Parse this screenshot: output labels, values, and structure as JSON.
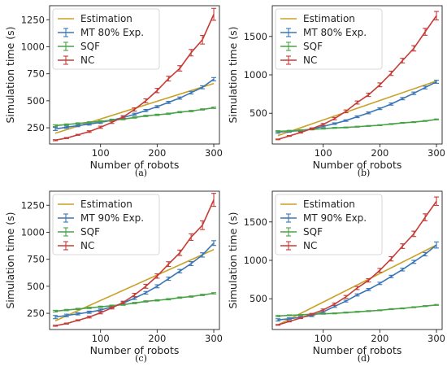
{
  "colors": {
    "estimation": "#c9a227",
    "mt": "#3a76b5",
    "sqf": "#4aa247",
    "nc": "#c63c37"
  },
  "chart_data": [
    {
      "type": "line",
      "panel_label": "(a)",
      "xlabel": "Number of robots",
      "ylabel": "Simulation time (s)",
      "xlim": [
        10,
        310
      ],
      "ylim": [
        100,
        1380
      ],
      "xticks": [
        100,
        200,
        300
      ],
      "yticks": [
        250,
        500,
        750,
        1000,
        1250
      ],
      "legend": "top-left",
      "grid": false,
      "legend_entries": [
        "Estimation",
        "MT 80% Exp.",
        "SQF",
        "NC"
      ],
      "estimation": {
        "name": "Estimation",
        "x": [
          20,
          300
        ],
        "y": [
          200,
          660
        ]
      },
      "series": [
        {
          "name": "MT 80% Exp.",
          "key": "mt",
          "x": [
            20,
            40,
            60,
            80,
            100,
            120,
            140,
            160,
            180,
            200,
            220,
            240,
            260,
            280,
            300
          ],
          "y": [
            240,
            255,
            270,
            285,
            300,
            320,
            345,
            375,
            410,
            445,
            485,
            525,
            575,
            625,
            700
          ],
          "err": [
            15,
            10,
            10,
            10,
            10,
            10,
            10,
            10,
            10,
            10,
            10,
            10,
            12,
            14,
            15
          ]
        },
        {
          "name": "SQF",
          "key": "sqf",
          "x": [
            20,
            40,
            60,
            80,
            100,
            120,
            140,
            160,
            180,
            200,
            220,
            240,
            260,
            280,
            300
          ],
          "y": [
            270,
            280,
            290,
            300,
            310,
            320,
            330,
            345,
            360,
            370,
            380,
            395,
            405,
            420,
            435
          ],
          "err": [
            8,
            6,
            6,
            6,
            6,
            6,
            6,
            6,
            6,
            6,
            6,
            6,
            6,
            6,
            6
          ]
        },
        {
          "name": "NC",
          "key": "nc",
          "x": [
            20,
            40,
            60,
            80,
            100,
            120,
            140,
            160,
            180,
            200,
            220,
            240,
            260,
            280,
            300
          ],
          "y": [
            135,
            155,
            185,
            215,
            255,
            300,
            350,
            420,
            500,
            595,
            705,
            800,
            945,
            1065,
            1300
          ],
          "err": [
            5,
            5,
            5,
            8,
            10,
            10,
            12,
            15,
            18,
            20,
            22,
            25,
            30,
            40,
            55
          ]
        }
      ]
    },
    {
      "type": "line",
      "panel_label": "(b)",
      "xlabel": "Number of robots",
      "ylabel": "Simulation time (s)",
      "xlim": [
        10,
        310
      ],
      "ylim": [
        100,
        1900
      ],
      "xticks": [
        100,
        200,
        300
      ],
      "yticks": [
        500,
        1000,
        1500
      ],
      "legend": "top-left",
      "grid": false,
      "legend_entries": [
        "Estimation",
        "MT 80% Exp.",
        "SQF",
        "NC"
      ],
      "estimation": {
        "name": "Estimation",
        "x": [
          20,
          300
        ],
        "y": [
          210,
          920
        ]
      },
      "series": [
        {
          "name": "MT 80% Exp.",
          "key": "mt",
          "x": [
            20,
            40,
            60,
            80,
            100,
            120,
            140,
            160,
            180,
            200,
            220,
            240,
            260,
            280,
            300
          ],
          "y": [
            255,
            265,
            275,
            295,
            330,
            365,
            405,
            455,
            505,
            560,
            620,
            690,
            760,
            835,
            910
          ],
          "err": [
            15,
            12,
            10,
            10,
            10,
            10,
            10,
            12,
            12,
            12,
            14,
            15,
            16,
            18,
            20
          ]
        },
        {
          "name": "SQF",
          "key": "sqf",
          "x": [
            20,
            40,
            60,
            80,
            100,
            120,
            140,
            160,
            180,
            200,
            220,
            240,
            260,
            280,
            300
          ],
          "y": [
            265,
            270,
            280,
            290,
            300,
            310,
            315,
            325,
            335,
            345,
            360,
            375,
            385,
            400,
            420
          ],
          "err": [
            8,
            6,
            6,
            6,
            6,
            6,
            6,
            6,
            6,
            6,
            6,
            6,
            6,
            6,
            6
          ]
        },
        {
          "name": "NC",
          "key": "nc",
          "x": [
            20,
            40,
            60,
            80,
            100,
            120,
            140,
            160,
            180,
            200,
            220,
            240,
            260,
            280,
            300
          ],
          "y": [
            160,
            205,
            250,
            300,
            355,
            430,
            525,
            640,
            740,
            870,
            1020,
            1185,
            1345,
            1560,
            1770
          ],
          "err": [
            5,
            6,
            8,
            10,
            12,
            15,
            18,
            20,
            22,
            25,
            28,
            30,
            35,
            45,
            55
          ]
        }
      ]
    },
    {
      "type": "line",
      "panel_label": "(c)",
      "xlabel": "Number of robots",
      "ylabel": "Simulation time (s)",
      "xlim": [
        10,
        310
      ],
      "ylim": [
        100,
        1380
      ],
      "xticks": [
        100,
        200,
        300
      ],
      "yticks": [
        250,
        500,
        750,
        1000,
        1250
      ],
      "legend": "top-left",
      "grid": false,
      "legend_entries": [
        "Estimation",
        "MT 90% Exp.",
        "SQF",
        "NC"
      ],
      "estimation": {
        "name": "Estimation",
        "x": [
          20,
          300
        ],
        "y": [
          180,
          840
        ]
      },
      "series": [
        {
          "name": "MT 90% Exp.",
          "key": "mt",
          "x": [
            20,
            40,
            60,
            80,
            100,
            120,
            140,
            160,
            180,
            200,
            220,
            240,
            260,
            280,
            300
          ],
          "y": [
            215,
            230,
            245,
            260,
            280,
            310,
            345,
            390,
            440,
            500,
            570,
            640,
            710,
            790,
            900
          ],
          "err": [
            15,
            12,
            10,
            10,
            10,
            10,
            10,
            12,
            12,
            14,
            15,
            16,
            18,
            20,
            22
          ]
        },
        {
          "name": "SQF",
          "key": "sqf",
          "x": [
            20,
            40,
            60,
            80,
            100,
            120,
            140,
            160,
            180,
            200,
            220,
            240,
            260,
            280,
            300
          ],
          "y": [
            270,
            280,
            290,
            300,
            310,
            320,
            330,
            345,
            360,
            370,
            380,
            395,
            405,
            420,
            435
          ],
          "err": [
            8,
            6,
            6,
            6,
            6,
            6,
            6,
            6,
            6,
            6,
            6,
            6,
            6,
            6,
            6
          ]
        },
        {
          "name": "NC",
          "key": "nc",
          "x": [
            20,
            40,
            60,
            80,
            100,
            120,
            140,
            160,
            180,
            200,
            220,
            240,
            260,
            280,
            300
          ],
          "y": [
            135,
            155,
            185,
            215,
            255,
            300,
            350,
            420,
            500,
            595,
            705,
            810,
            955,
            1065,
            1300
          ],
          "err": [
            5,
            5,
            5,
            8,
            10,
            10,
            12,
            15,
            18,
            20,
            22,
            25,
            30,
            40,
            60
          ]
        }
      ]
    },
    {
      "type": "line",
      "panel_label": "(d)",
      "xlabel": "Number of robots",
      "ylabel": "Simulation time (s)",
      "xlim": [
        10,
        310
      ],
      "ylim": [
        100,
        1900
      ],
      "xticks": [
        100,
        200,
        300
      ],
      "yticks": [
        500,
        1000,
        1500
      ],
      "legend": "top-left",
      "grid": false,
      "legend_entries": [
        "Estimation",
        "MT 90% Exp.",
        "SQF",
        "NC"
      ],
      "estimation": {
        "name": "Estimation",
        "x": [
          20,
          300
        ],
        "y": [
          160,
          1200
        ]
      },
      "series": [
        {
          "name": "MT 90% Exp.",
          "key": "mt",
          "x": [
            20,
            40,
            60,
            80,
            100,
            120,
            140,
            160,
            180,
            200,
            220,
            240,
            260,
            280,
            300
          ],
          "y": [
            225,
            240,
            260,
            280,
            330,
            400,
            470,
            550,
            620,
            700,
            790,
            880,
            980,
            1080,
            1200
          ],
          "err": [
            15,
            12,
            12,
            12,
            12,
            12,
            12,
            14,
            14,
            15,
            16,
            18,
            20,
            22,
            40
          ]
        },
        {
          "name": "SQF",
          "key": "sqf",
          "x": [
            20,
            40,
            60,
            80,
            100,
            120,
            140,
            160,
            180,
            200,
            220,
            240,
            260,
            280,
            300
          ],
          "y": [
            275,
            285,
            290,
            300,
            305,
            310,
            320,
            330,
            340,
            350,
            365,
            375,
            390,
            405,
            420
          ],
          "err": [
            8,
            6,
            6,
            6,
            6,
            6,
            6,
            6,
            6,
            6,
            6,
            6,
            6,
            6,
            6
          ]
        },
        {
          "name": "NC",
          "key": "nc",
          "x": [
            20,
            40,
            60,
            80,
            100,
            120,
            140,
            160,
            180,
            200,
            220,
            240,
            260,
            280,
            300
          ],
          "y": [
            160,
            205,
            250,
            300,
            355,
            430,
            525,
            640,
            740,
            870,
            1020,
            1185,
            1345,
            1560,
            1770
          ],
          "err": [
            5,
            6,
            8,
            10,
            12,
            15,
            18,
            20,
            22,
            25,
            28,
            30,
            35,
            45,
            55
          ]
        }
      ]
    }
  ]
}
